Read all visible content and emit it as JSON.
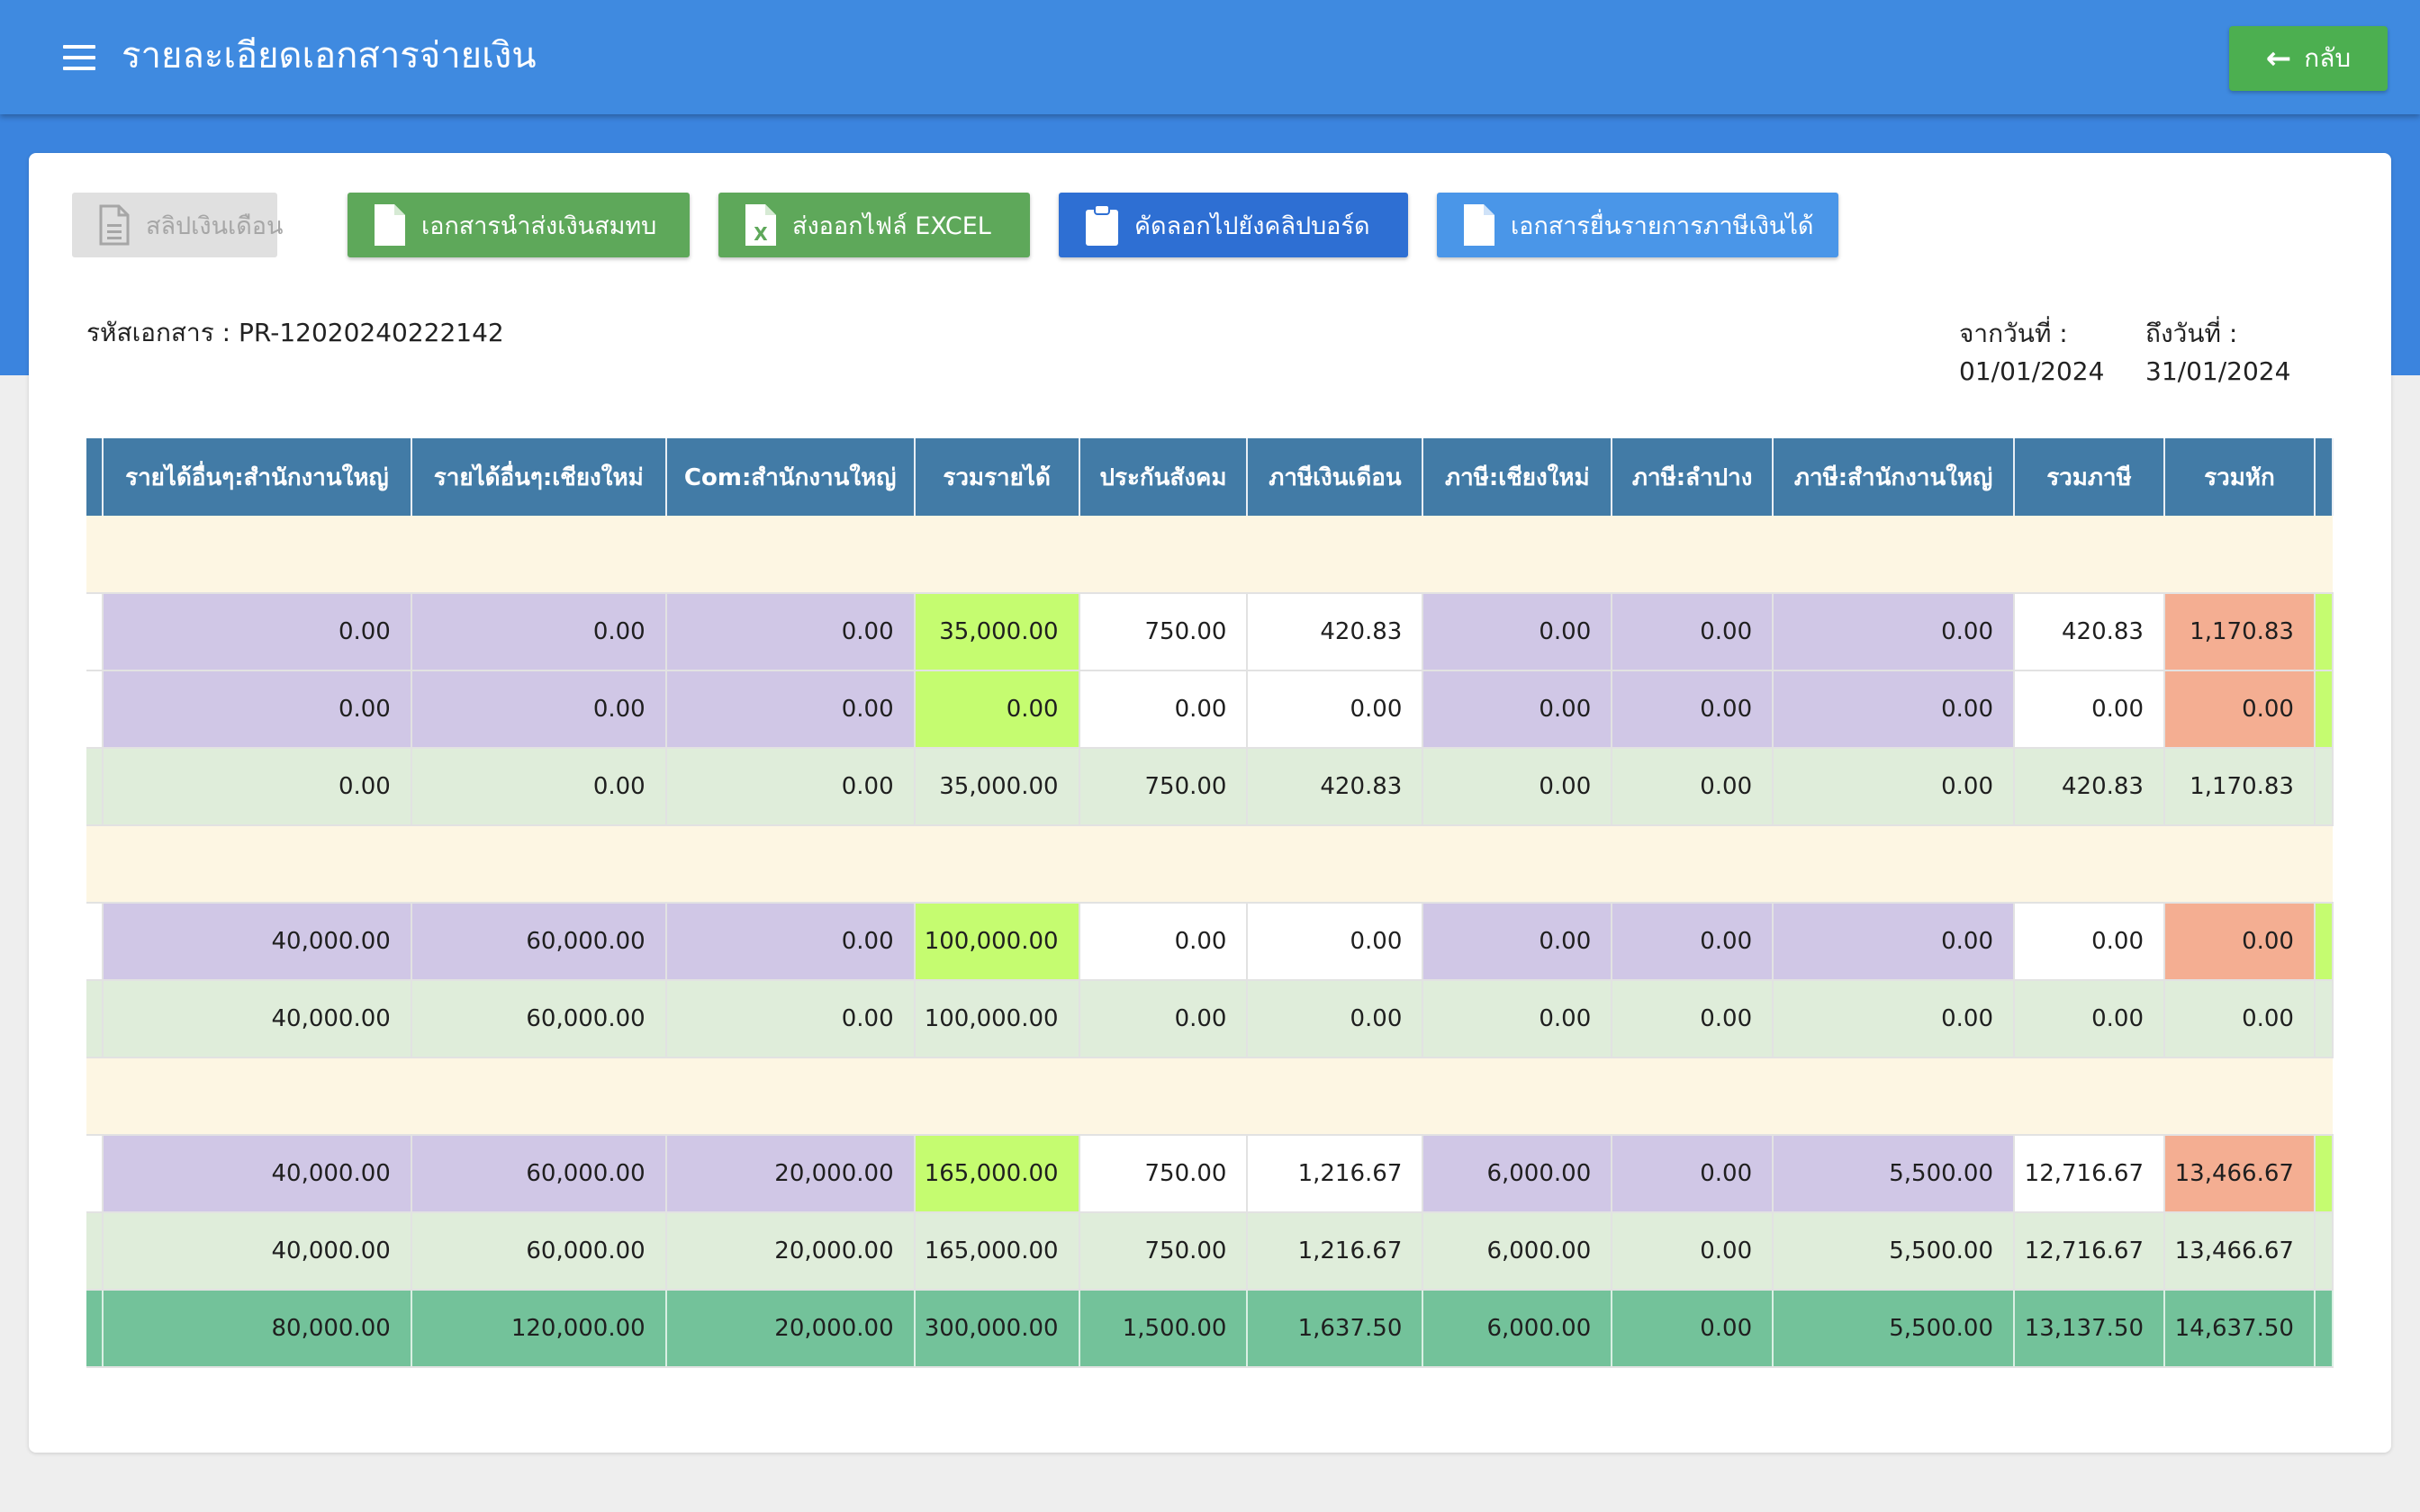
{
  "header": {
    "title": "รายละเอียดเอกสารจ่ายเงิน",
    "back_label": "กลับ"
  },
  "toolbar": {
    "payslip": "สลิปเงินเดือน",
    "social_security_doc": "เอกสารนำส่งเงินสมทบ",
    "export_excel": "ส่งออกไฟล์ EXCEL",
    "copy_clipboard": "คัดลอกไปยังคลิปบอร์ด",
    "tax_doc": "เอกสารยื่นรายการภาษีเงินได้"
  },
  "doc": {
    "code_label": "รหัสเอกสาร :",
    "code": "PR-12020240222142",
    "from_label": "จากวันที่ :",
    "from": "01/01/2024",
    "to_label": "ถึงวันที่ :",
    "to": "31/01/2024"
  },
  "table": {
    "columns": [
      "รายได้อื่นๆ:สำนักงานใหญ่",
      "รายได้อื่นๆ:เชียงใหม่",
      "Com:สำนักงานใหญ่",
      "รวมรายได้",
      "ประกันสังคม",
      "ภาษีเงินเดือน",
      "ภาษี:เชียงใหม่",
      "ภาษี:ลำปาง",
      "ภาษี:สำนักงานใหญ่",
      "รวมภาษี",
      "รวมหัก"
    ],
    "rows": [
      {
        "type": "spacer"
      },
      {
        "type": "item",
        "values": [
          "0.00",
          "0.00",
          "0.00",
          "35,000.00",
          "750.00",
          "420.83",
          "0.00",
          "0.00",
          "0.00",
          "420.83",
          "1,170.83"
        ]
      },
      {
        "type": "item",
        "values": [
          "0.00",
          "0.00",
          "0.00",
          "0.00",
          "0.00",
          "0.00",
          "0.00",
          "0.00",
          "0.00",
          "0.00",
          "0.00"
        ]
      },
      {
        "type": "total",
        "values": [
          "0.00",
          "0.00",
          "0.00",
          "35,000.00",
          "750.00",
          "420.83",
          "0.00",
          "0.00",
          "0.00",
          "420.83",
          "1,170.83"
        ]
      },
      {
        "type": "spacer"
      },
      {
        "type": "item",
        "values": [
          "40,000.00",
          "60,000.00",
          "0.00",
          "100,000.00",
          "0.00",
          "0.00",
          "0.00",
          "0.00",
          "0.00",
          "0.00",
          "0.00"
        ]
      },
      {
        "type": "total",
        "values": [
          "40,000.00",
          "60,000.00",
          "0.00",
          "100,000.00",
          "0.00",
          "0.00",
          "0.00",
          "0.00",
          "0.00",
          "0.00",
          "0.00"
        ]
      },
      {
        "type": "spacer"
      },
      {
        "type": "item",
        "values": [
          "40,000.00",
          "60,000.00",
          "20,000.00",
          "165,000.00",
          "750.00",
          "1,216.67",
          "6,000.00",
          "0.00",
          "5,500.00",
          "12,716.67",
          "13,466.67"
        ]
      },
      {
        "type": "total",
        "values": [
          "40,000.00",
          "60,000.00",
          "20,000.00",
          "165,000.00",
          "750.00",
          "1,216.67",
          "6,000.00",
          "0.00",
          "5,500.00",
          "12,716.67",
          "13,466.67"
        ]
      },
      {
        "type": "grand",
        "values": [
          "80,000.00",
          "120,000.00",
          "20,000.00",
          "300,000.00",
          "1,500.00",
          "1,637.50",
          "6,000.00",
          "0.00",
          "5,500.00",
          "13,137.50",
          "14,637.50"
        ]
      }
    ]
  },
  "colors": {
    "appbar": "#3f8ae0",
    "header_cell": "#427ba6",
    "purple_cell": "#d0c7e6",
    "lime_cell": "#c5fc70",
    "salmon_cell": "#f4ae92",
    "total_row": "#dfedda",
    "grand_row": "#73c29a",
    "spacer_row": "#fdf6e3"
  }
}
